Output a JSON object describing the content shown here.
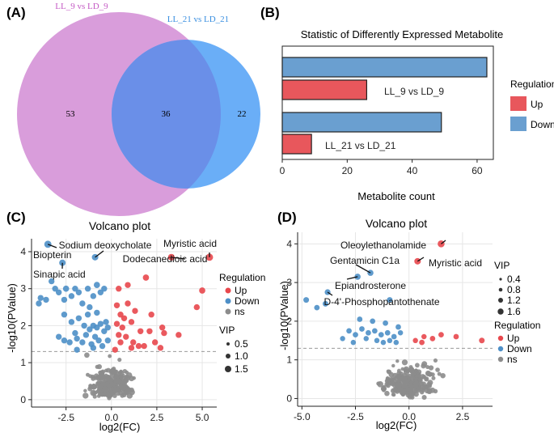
{
  "chart_data": [
    {
      "panel": "(A)",
      "type": "venn",
      "sets": [
        {
          "name": "LL_9 vs LD_9",
          "color": "#d99ddb",
          "only": 53
        },
        {
          "name": "LL_21 vs LD_21",
          "color": "#6aaef7",
          "only": 22
        }
      ],
      "overlap": 36,
      "overlap_color": "#6a8fe8"
    },
    {
      "panel": "(B)",
      "type": "bar",
      "title": "Statistic of Differently Expressed Metabolite",
      "xlabel": "Metabolite count",
      "xlim": [
        0,
        65
      ],
      "xticks": [
        0,
        20,
        40,
        60
      ],
      "groups": [
        {
          "label": "LL_9 vs LD_9",
          "down": 63,
          "up": 26
        },
        {
          "label": "LL_21 vs LD_21",
          "down": 49,
          "up": 9
        }
      ],
      "legend_title": "Regulation",
      "legend": [
        {
          "name": "Up",
          "color": "#e8575c"
        },
        {
          "name": "Down",
          "color": "#6a9fd0"
        }
      ]
    },
    {
      "panel": "(C)",
      "type": "scatter",
      "title": "Volcano plot",
      "xlabel": "log2(FC)",
      "ylabel": "-log10(PValue)",
      "xlim": [
        -4.4,
        5.8
      ],
      "ylim": [
        -0.2,
        4.35
      ],
      "xticks": [
        -2.5,
        0.0,
        2.5,
        5.0
      ],
      "xtick_labels": [
        "-2.5",
        "0.0",
        "2.5",
        "5.0"
      ],
      "yticks": [
        0,
        1,
        2,
        3,
        4
      ],
      "threshold": 1.3,
      "colors": {
        "Up": "#e8474c",
        "Down": "#4d8fc7",
        "ns": "#8c8c8c"
      },
      "legend_regulation_title": "Regulation",
      "legend_regulation": [
        "Up",
        "Down",
        "ns"
      ],
      "legend_vip_title": "VIP",
      "legend_vip": [
        "0.5",
        "1.0",
        "1.5"
      ],
      "labels": [
        {
          "text": "Sodium deoxycholate",
          "x": -0.9,
          "y": 3.85
        },
        {
          "text": "Biopterin",
          "x": -3.5,
          "y": 4.2
        },
        {
          "text": "Sinapic acid",
          "x": -2.7,
          "y": 3.7
        },
        {
          "text": "Myristic acid",
          "x": 5.4,
          "y": 3.85
        },
        {
          "text": "Dodecanedioic acid",
          "x": 3.3,
          "y": 3.85
        }
      ],
      "points": [
        [
          -3.5,
          4.2,
          "Down",
          1.5
        ],
        [
          -2.7,
          3.7,
          "Down",
          1.2
        ],
        [
          -0.9,
          3.85,
          "Down",
          1.2
        ],
        [
          -3.3,
          3.2,
          "Down",
          1.0
        ],
        [
          -3.1,
          3.0,
          "Down",
          1.0
        ],
        [
          -2.9,
          2.9,
          "Down",
          1.0
        ],
        [
          -2.5,
          3.0,
          "Down",
          1.1
        ],
        [
          -2.6,
          2.7,
          "Down",
          1.0
        ],
        [
          -2.2,
          2.8,
          "Down",
          1.0
        ],
        [
          -2.0,
          3.0,
          "Down",
          1.0
        ],
        [
          -1.8,
          2.9,
          "Down",
          1.0
        ],
        [
          -1.3,
          3.0,
          "Down",
          1.0
        ],
        [
          -1.0,
          2.8,
          "Down",
          1.0
        ],
        [
          -0.8,
          3.1,
          "Down",
          1.1
        ],
        [
          -0.6,
          2.9,
          "Down",
          1.0
        ],
        [
          -0.4,
          3.0,
          "Down",
          1.0
        ],
        [
          -3.9,
          2.75,
          "Down",
          1.0
        ],
        [
          -4.0,
          2.6,
          "Down",
          1.0
        ],
        [
          -3.6,
          2.7,
          "Down",
          1.0
        ],
        [
          -1.6,
          2.6,
          "Down",
          1.0
        ],
        [
          -1.2,
          2.5,
          "Down",
          1.0
        ],
        [
          -0.8,
          2.35,
          "Down",
          1.0
        ],
        [
          -2.6,
          2.3,
          "Down",
          1.0
        ],
        [
          -2.2,
          2.1,
          "Down",
          1.0
        ],
        [
          -1.8,
          2.2,
          "Down",
          1.0
        ],
        [
          -1.5,
          2.0,
          "Down",
          1.0
        ],
        [
          -1.2,
          1.9,
          "Down",
          1.0
        ],
        [
          -1.0,
          2.0,
          "Down",
          1.0
        ],
        [
          -0.8,
          1.95,
          "Down",
          1.0
        ],
        [
          -0.6,
          2.05,
          "Down",
          1.0
        ],
        [
          -0.4,
          1.85,
          "Down",
          1.0
        ],
        [
          -0.3,
          2.1,
          "Down",
          1.0
        ],
        [
          -0.2,
          1.95,
          "Down",
          1.0
        ],
        [
          -1.4,
          1.75,
          "Down",
          1.0
        ],
        [
          -0.9,
          1.7,
          "Down",
          1.0
        ],
        [
          -0.7,
          1.6,
          "Down",
          1.0
        ],
        [
          -2.9,
          1.7,
          "Down",
          1.0
        ],
        [
          -2.6,
          1.6,
          "Down",
          1.0
        ],
        [
          -2.3,
          1.55,
          "Down",
          1.0
        ],
        [
          -1.9,
          1.65,
          "Down",
          1.0
        ],
        [
          -1.6,
          1.55,
          "Down",
          1.0
        ],
        [
          -1.1,
          1.5,
          "Down",
          1.0
        ],
        [
          -0.5,
          1.45,
          "Down",
          1.0
        ],
        [
          -1.9,
          1.35,
          "Down",
          1.0
        ],
        [
          -1.0,
          1.4,
          "Down",
          1.0
        ],
        [
          -0.2,
          1.6,
          "Down",
          1.0
        ],
        [
          -1.3,
          2.3,
          "Down",
          1.0
        ],
        [
          -2.0,
          1.8,
          "Down",
          1.0
        ],
        [
          5.4,
          3.85,
          "Up",
          1.5
        ],
        [
          3.3,
          3.85,
          "Up",
          1.3
        ],
        [
          1.9,
          3.3,
          "Up",
          1.1
        ],
        [
          0.4,
          3.0,
          "Up",
          1.0
        ],
        [
          0.9,
          3.1,
          "Up",
          1.0
        ],
        [
          5.0,
          2.95,
          "Up",
          1.1
        ],
        [
          4.7,
          2.5,
          "Up",
          1.0
        ],
        [
          0.9,
          2.6,
          "Up",
          1.0
        ],
        [
          1.3,
          2.4,
          "Up",
          1.0
        ],
        [
          0.5,
          2.3,
          "Up",
          1.0
        ],
        [
          0.7,
          2.2,
          "Up",
          1.0
        ],
        [
          2.2,
          2.3,
          "Up",
          1.0
        ],
        [
          0.3,
          2.05,
          "Up",
          1.0
        ],
        [
          0.6,
          1.95,
          "Up",
          1.0
        ],
        [
          1.1,
          2.1,
          "Up",
          1.0
        ],
        [
          1.6,
          1.85,
          "Up",
          1.0
        ],
        [
          2.1,
          1.85,
          "Up",
          1.0
        ],
        [
          2.9,
          1.8,
          "Up",
          1.0
        ],
        [
          3.7,
          1.75,
          "Up",
          1.0
        ],
        [
          0.4,
          1.75,
          "Up",
          1.0
        ],
        [
          0.8,
          1.7,
          "Up",
          1.0
        ],
        [
          1.2,
          1.55,
          "Up",
          1.0
        ],
        [
          0.5,
          1.55,
          "Up",
          1.0
        ],
        [
          1.5,
          1.45,
          "Up",
          1.0
        ],
        [
          2.4,
          1.55,
          "Up",
          1.0
        ],
        [
          2.7,
          1.4,
          "Up",
          1.0
        ],
        [
          1.8,
          1.45,
          "Up",
          1.0
        ],
        [
          1.1,
          1.4,
          "Up",
          1.0
        ],
        [
          0.2,
          1.35,
          "Up",
          1.0
        ],
        [
          2.8,
          1.95,
          "Up",
          1.0
        ],
        [
          0.3,
          2.55,
          "Up",
          1.0
        ]
      ]
    },
    {
      "panel": "(D)",
      "type": "scatter",
      "title": "Volcano plot",
      "xlabel": "log2(FC)",
      "ylabel": "-log10(PValue)",
      "xlim": [
        -5.2,
        3.9
      ],
      "ylim": [
        -0.2,
        4.3
      ],
      "xticks": [
        -5.0,
        -2.5,
        0.0,
        2.5
      ],
      "xtick_labels": [
        "-5.0",
        "-2.5",
        "0.0",
        "2.5"
      ],
      "yticks": [
        0,
        1,
        2,
        3,
        4
      ],
      "threshold": 1.3,
      "colors": {
        "Up": "#e8474c",
        "Down": "#4d8fc7",
        "ns": "#8c8c8c"
      },
      "legend_vip_title": "VIP",
      "legend_vip": [
        "0.4",
        "0.8",
        "1.2",
        "1.6"
      ],
      "legend_regulation_title": "Regulation",
      "legend_regulation": [
        "Up",
        "Down",
        "ns"
      ],
      "labels": [
        {
          "text": "Oleoylethanolamide",
          "x": 1.5,
          "y": 4.0
        },
        {
          "text": "Gentamicin C1a",
          "x": -1.8,
          "y": 3.25
        },
        {
          "text": "Myristic acid",
          "x": 0.4,
          "y": 3.55
        },
        {
          "text": "Epiandrosterone",
          "x": -2.4,
          "y": 3.15
        },
        {
          "text": "D-4'-Phosphopantothenate",
          "x": -3.8,
          "y": 2.75
        }
      ],
      "points": [
        [
          1.5,
          4.0,
          "Up",
          1.6
        ],
        [
          0.4,
          3.55,
          "Up",
          1.4
        ],
        [
          -1.8,
          3.25,
          "Down",
          1.2
        ],
        [
          -2.4,
          3.15,
          "Down",
          1.2
        ],
        [
          -3.8,
          2.75,
          "Down",
          1.1
        ],
        [
          -4.8,
          2.55,
          "Down",
          1.0
        ],
        [
          -0.9,
          2.55,
          "Down",
          1.0
        ],
        [
          -3.9,
          2.45,
          "Down",
          1.0
        ],
        [
          -4.3,
          2.35,
          "Down",
          0.9
        ],
        [
          3.4,
          1.5,
          "Up",
          1.0
        ],
        [
          2.2,
          1.6,
          "Up",
          0.9
        ],
        [
          1.5,
          1.65,
          "Up",
          0.9
        ],
        [
          1.1,
          1.55,
          "Up",
          0.9
        ],
        [
          0.6,
          1.45,
          "Up",
          0.9
        ],
        [
          0.3,
          1.5,
          "Up",
          0.8
        ],
        [
          0.7,
          1.6,
          "Up",
          0.8
        ],
        [
          -2.8,
          1.75,
          "Down",
          0.9
        ],
        [
          -2.5,
          1.65,
          "Down",
          0.9
        ],
        [
          -2.2,
          1.8,
          "Down",
          0.9
        ],
        [
          -1.9,
          1.7,
          "Down",
          0.9
        ],
        [
          -1.6,
          1.75,
          "Down",
          0.9
        ],
        [
          -1.3,
          1.65,
          "Down",
          0.9
        ],
        [
          -1.0,
          1.7,
          "Down",
          0.9
        ],
        [
          -0.7,
          1.6,
          "Down",
          0.9
        ],
        [
          -0.4,
          1.7,
          "Down",
          0.8
        ],
        [
          -2.0,
          1.55,
          "Down",
          0.8
        ],
        [
          -1.5,
          1.5,
          "Down",
          0.8
        ],
        [
          -1.2,
          1.45,
          "Down",
          0.8
        ],
        [
          -0.9,
          1.5,
          "Down",
          0.8
        ],
        [
          -0.6,
          1.45,
          "Down",
          0.8
        ],
        [
          -2.6,
          1.45,
          "Down",
          0.8
        ],
        [
          -3.1,
          1.55,
          "Down",
          0.8
        ],
        [
          -1.7,
          2.0,
          "Down",
          0.9
        ],
        [
          -1.1,
          1.95,
          "Down",
          0.9
        ],
        [
          -0.5,
          1.85,
          "Down",
          0.9
        ],
        [
          -2.3,
          2.05,
          "Down",
          0.9
        ]
      ]
    }
  ]
}
